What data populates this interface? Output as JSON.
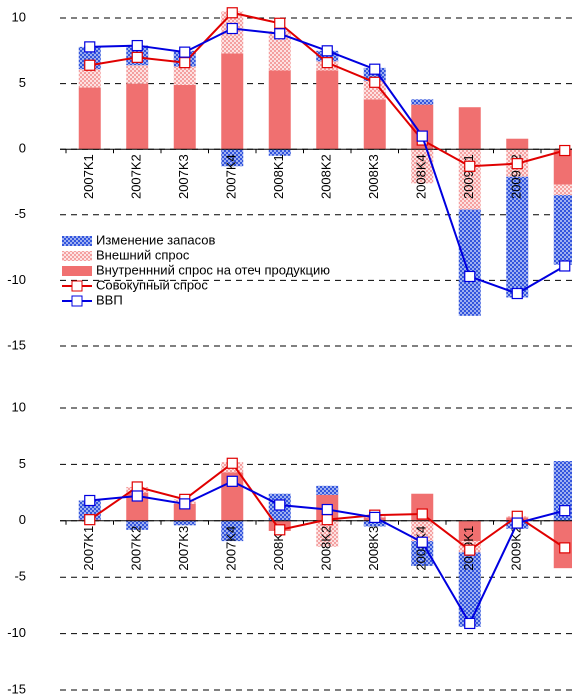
{
  "chart_data": [
    {
      "type": "combo",
      "categories": [
        "2007K1",
        "2007K2",
        "2007K3",
        "2007K4",
        "2008K1",
        "2008K2",
        "2008K3",
        "2008K4",
        "2009K1",
        "2009K2",
        null
      ],
      "ylim": [
        -15,
        11
      ],
      "yticks": [
        -15,
        -10,
        -5,
        0,
        5,
        10
      ],
      "grid": true,
      "legend": "center left",
      "series": [
        {
          "name": "Изменение запасов",
          "type": "bar",
          "color": "#3355dd",
          "pattern": "crosshatch",
          "values": [
            1.7,
            1.5,
            1.2,
            -1.3,
            -0.5,
            0.8,
            1.0,
            0.4,
            -8.1,
            -9.2,
            -5.3
          ]
        },
        {
          "name": "Внешний спрос",
          "type": "bar",
          "color": "#f4a0a0",
          "pattern": "dots",
          "values": [
            1.4,
            1.4,
            1.4,
            3.2,
            3.0,
            0.7,
            1.4,
            -2.6,
            -4.6,
            -2.1,
            -0.8
          ]
        },
        {
          "name": "Внутреннний спрос на отеч продукцию",
          "type": "bar",
          "color": "#f07070",
          "pattern": "solid",
          "values": [
            4.7,
            5.0,
            4.9,
            7.3,
            6.0,
            6.0,
            3.8,
            3.4,
            3.2,
            0.8,
            -2.7
          ]
        },
        {
          "name": "Совокупный спрос",
          "type": "line",
          "color": "#e00000",
          "values": [
            6.4,
            7.0,
            6.6,
            10.4,
            9.6,
            6.6,
            5.1,
            0.7,
            -1.3,
            -1.1,
            -0.1
          ]
        },
        {
          "name": "ВВП",
          "type": "line",
          "color": "#0000e0",
          "values": [
            7.8,
            7.9,
            7.4,
            9.2,
            8.8,
            7.5,
            6.1,
            1.0,
            -9.7,
            -11.0,
            -8.9
          ]
        }
      ]
    },
    {
      "type": "combo",
      "categories": [
        "2007K1",
        "2007K2",
        "2007K3",
        "2007K4",
        "2008K1",
        "2008K2",
        "2008K3",
        "2008K4",
        "2009K1",
        "2009K2",
        null
      ],
      "ylim": [
        -15,
        10
      ],
      "yticks": [
        -15,
        -10,
        -5,
        0,
        5,
        10
      ],
      "grid": true,
      "legend": false,
      "series": [
        {
          "type": "bar",
          "color": "#3355dd",
          "pattern": "crosshatch",
          "values": [
            1.7,
            -0.8,
            -0.4,
            -1.8,
            2.4,
            0.8,
            -0.5,
            -2.2,
            -6.6,
            -0.7,
            5.3
          ]
        },
        {
          "type": "bar",
          "color": "#f4a0a0",
          "pattern": "dots",
          "values": [
            0,
            0.5,
            0.4,
            0.9,
            0,
            -2.3,
            0.1,
            -1.8,
            -1.0,
            0.1,
            0
          ]
        },
        {
          "type": "bar",
          "color": "#f07070",
          "pattern": "solid",
          "values": [
            0.1,
            2.5,
            1.5,
            4.3,
            -0.9,
            2.3,
            0.3,
            2.4,
            -1.8,
            0.3,
            -4.2
          ]
        },
        {
          "type": "line",
          "color": "#e00000",
          "values": [
            0.1,
            3.0,
            1.9,
            5.1,
            -0.8,
            0.1,
            0.5,
            0.6,
            -2.6,
            0.4,
            -2.4
          ]
        },
        {
          "type": "line",
          "color": "#0000e0",
          "values": [
            1.8,
            2.2,
            1.5,
            3.5,
            1.4,
            1.0,
            0.3,
            -1.9,
            -9.1,
            -0.2,
            0.9
          ]
        }
      ]
    }
  ]
}
